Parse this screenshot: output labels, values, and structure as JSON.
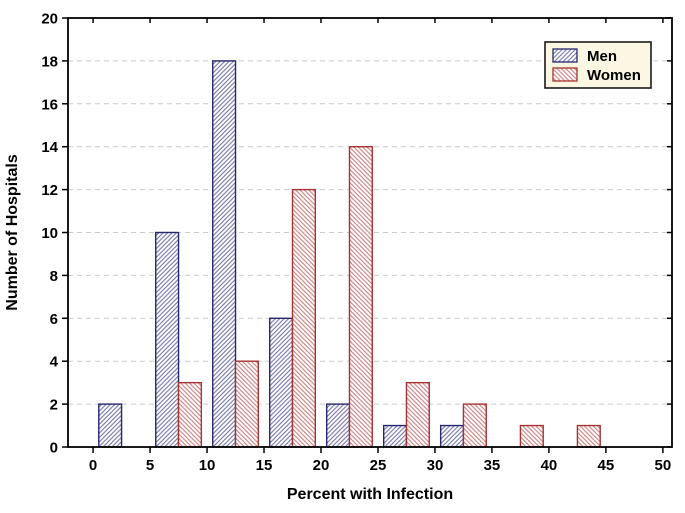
{
  "chart_data": {
    "type": "bar",
    "subtype": "grouped-histogram",
    "title": "",
    "xlabel": "Percent with Infection",
    "ylabel": "Number of Hospitals",
    "xlim": [
      -2.2,
      50.8
    ],
    "ylim": [
      0,
      20
    ],
    "x_ticks": [
      "0",
      "5",
      "10",
      "15",
      "20",
      "25",
      "30",
      "35",
      "40",
      "45",
      "50"
    ],
    "x_tick_values": [
      0,
      5,
      10,
      15,
      20,
      25,
      30,
      35,
      40,
      45,
      50
    ],
    "y_ticks": [
      "0",
      "2",
      "4",
      "6",
      "8",
      "10",
      "12",
      "14",
      "16",
      "18",
      "20"
    ],
    "y_tick_values": [
      0,
      2,
      4,
      6,
      8,
      10,
      12,
      14,
      16,
      18,
      20
    ],
    "grid": {
      "horizontal_dashed": true,
      "vertical": false,
      "color": "#c9c9c9"
    },
    "bins": {
      "starts": [
        0,
        5,
        10,
        15,
        20,
        25,
        30,
        35,
        40,
        45
      ],
      "width": 5
    },
    "bar_layout": {
      "bar_width_units": 2,
      "offsets_in_bin": [
        0.5,
        2.5
      ]
    },
    "series": [
      {
        "name": "Men",
        "hatch": "forward-slash",
        "border_color": "#27276f",
        "hatch_color": "#7070a6",
        "values": [
          2,
          10,
          18,
          6,
          2,
          1,
          1,
          0,
          0,
          0
        ]
      },
      {
        "name": "Women",
        "hatch": "back-slash",
        "border_color": "#a63232",
        "hatch_color": "#cc7b7b",
        "values": [
          0,
          3,
          4,
          12,
          14,
          3,
          2,
          1,
          1,
          0
        ]
      }
    ],
    "legend": {
      "position": "top-right",
      "background": "#fbf7e3",
      "border_color": "#1a1a1a"
    },
    "frame_color": "#000000",
    "text_color": "#000000",
    "plot_background": "#ffffff"
  }
}
